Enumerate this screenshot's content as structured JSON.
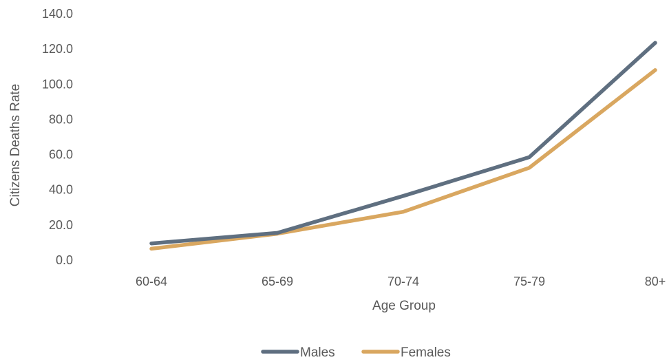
{
  "chart_data": {
    "type": "line",
    "title": "",
    "xlabel": "Age Group",
    "ylabel": "Citizens Deaths Rate",
    "categories": [
      "60-64",
      "65-69",
      "70-74",
      "75-79",
      "80+"
    ],
    "ylim": [
      0,
      140
    ],
    "yticks": [
      "0.0",
      "20.0",
      "40.0",
      "60.0",
      "80.0",
      "100.0",
      "120.0",
      "140.0"
    ],
    "grid": false,
    "legend_position": "bottom",
    "series": [
      {
        "name": "Males",
        "color": "#5f6f80",
        "values": [
          9.5,
          15.5,
          36.5,
          58.5,
          123.5
        ]
      },
      {
        "name": "Females",
        "color": "#d9a760",
        "values": [
          6.5,
          15.0,
          27.5,
          52.5,
          108.0
        ]
      }
    ]
  }
}
